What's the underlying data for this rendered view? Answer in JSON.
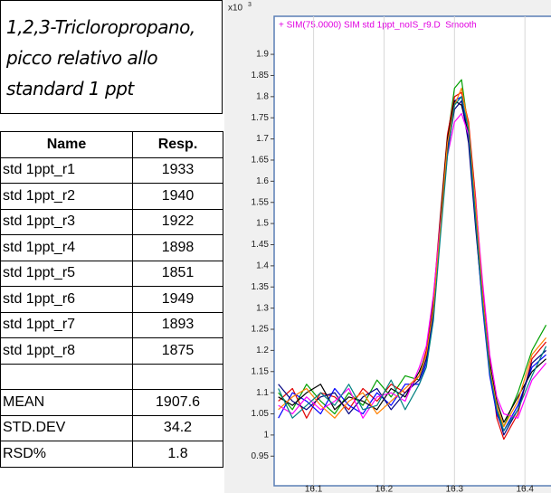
{
  "title": "1,2,3-Tricloropropano, picco relativo allo standard 1 ppt",
  "table": {
    "header": [
      "Name",
      "Resp."
    ],
    "rows": [
      [
        "std 1ppt_r1",
        1933
      ],
      [
        "std 1ppt_r2",
        1940
      ],
      [
        "std 1ppt_r3",
        1922
      ],
      [
        "std 1ppt_r4",
        1898
      ],
      [
        "std 1ppt_r5",
        1851
      ],
      [
        "std 1ppt_r6",
        1949
      ],
      [
        "std 1ppt_r7",
        1893
      ],
      [
        "std 1ppt_r8",
        1875
      ]
    ],
    "stats": [
      [
        "MEAN",
        1907.6
      ],
      [
        "STD.DEV",
        34.2
      ],
      [
        "RSD%",
        1.8
      ]
    ]
  },
  "chart_data": {
    "type": "line",
    "title": "+ SIM(75.0000) SIM std 1ppt_noIS_r9.D  Smooth",
    "y_scale_prefix": "x10",
    "y_scale_exponent": "3",
    "x": [
      16.05,
      16.07,
      16.09,
      16.11,
      16.13,
      16.15,
      16.17,
      16.19,
      16.21,
      16.23,
      16.25,
      16.26,
      16.27,
      16.28,
      16.29,
      16.3,
      16.31,
      16.32,
      16.33,
      16.34,
      16.35,
      16.36,
      16.37,
      16.39,
      16.41,
      16.43
    ],
    "series": [
      {
        "color": "#00a000",
        "values": [
          1.1,
          1.06,
          1.12,
          1.08,
          1.05,
          1.1,
          1.07,
          1.13,
          1.09,
          1.14,
          1.13,
          1.18,
          1.3,
          1.5,
          1.7,
          1.82,
          1.84,
          1.72,
          1.52,
          1.32,
          1.16,
          1.06,
          1.02,
          1.1,
          1.2,
          1.26
        ]
      },
      {
        "color": "#e00000",
        "values": [
          1.08,
          1.11,
          1.04,
          1.1,
          1.09,
          1.06,
          1.11,
          1.08,
          1.12,
          1.1,
          1.14,
          1.2,
          1.32,
          1.52,
          1.71,
          1.8,
          1.81,
          1.74,
          1.56,
          1.34,
          1.18,
          1.04,
          0.99,
          1.05,
          1.18,
          1.22
        ]
      },
      {
        "color": "#0000ff",
        "values": [
          1.04,
          1.1,
          1.08,
          1.05,
          1.11,
          1.07,
          1.05,
          1.1,
          1.07,
          1.12,
          1.12,
          1.17,
          1.28,
          1.48,
          1.68,
          1.79,
          1.8,
          1.7,
          1.5,
          1.3,
          1.14,
          1.05,
          1.01,
          1.07,
          1.16,
          1.19
        ]
      },
      {
        "color": "#000000",
        "values": [
          1.09,
          1.07,
          1.1,
          1.12,
          1.06,
          1.09,
          1.08,
          1.06,
          1.11,
          1.09,
          1.15,
          1.19,
          1.31,
          1.51,
          1.7,
          1.79,
          1.78,
          1.71,
          1.53,
          1.33,
          1.17,
          1.08,
          1.03,
          1.09,
          1.15,
          1.18
        ]
      },
      {
        "color": "#000080",
        "values": [
          1.12,
          1.08,
          1.06,
          1.09,
          1.1,
          1.05,
          1.09,
          1.11,
          1.06,
          1.1,
          1.13,
          1.18,
          1.29,
          1.49,
          1.67,
          1.77,
          1.79,
          1.69,
          1.49,
          1.31,
          1.15,
          1.06,
          1.0,
          1.06,
          1.17,
          1.2
        ]
      },
      {
        "color": "#ff00ff",
        "values": [
          1.07,
          1.05,
          1.09,
          1.06,
          1.08,
          1.11,
          1.04,
          1.09,
          1.1,
          1.08,
          1.16,
          1.21,
          1.33,
          1.5,
          1.66,
          1.74,
          1.76,
          1.71,
          1.55,
          1.36,
          1.19,
          1.09,
          1.05,
          1.04,
          1.13,
          1.17
        ]
      },
      {
        "color": "#ff8000",
        "values": [
          1.06,
          1.09,
          1.11,
          1.07,
          1.04,
          1.08,
          1.1,
          1.05,
          1.08,
          1.11,
          1.14,
          1.19,
          1.3,
          1.49,
          1.69,
          1.78,
          1.82,
          1.73,
          1.54,
          1.33,
          1.16,
          1.07,
          1.02,
          1.08,
          1.19,
          1.23
        ]
      },
      {
        "color": "#008080",
        "values": [
          1.11,
          1.04,
          1.07,
          1.1,
          1.07,
          1.12,
          1.06,
          1.07,
          1.13,
          1.06,
          1.12,
          1.16,
          1.27,
          1.47,
          1.66,
          1.78,
          1.8,
          1.72,
          1.51,
          1.31,
          1.15,
          1.06,
          1.01,
          1.06,
          1.14,
          1.21
        ]
      }
    ],
    "xlim": [
      16.044,
      16.437
    ],
    "ylim": [
      0.88,
      1.99
    ],
    "xticks": [
      16.1,
      16.2,
      16.3,
      16.4
    ],
    "yticks": [
      0.95,
      1,
      1.05,
      1.1,
      1.15,
      1.2,
      1.25,
      1.3,
      1.35,
      1.4,
      1.45,
      1.5,
      1.55,
      1.6,
      1.65,
      1.7,
      1.75,
      1.8,
      1.85,
      1.9
    ],
    "xgrid": true
  }
}
